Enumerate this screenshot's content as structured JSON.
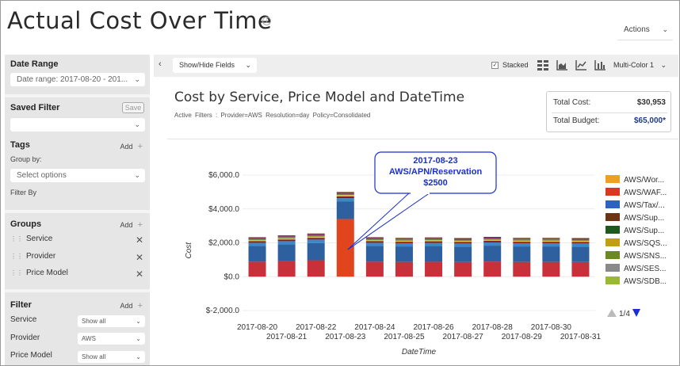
{
  "header": {
    "title": "Actual Cost Over Time",
    "info_icon": "i",
    "actions_label": "Actions"
  },
  "sidebar": {
    "date_range": {
      "title": "Date Range",
      "value": "Date range:  2017-08-20 - 201..."
    },
    "saved_filter": {
      "title": "Saved Filter",
      "save_label": "Save",
      "value": ""
    },
    "tags": {
      "title": "Tags",
      "add_label": "Add",
      "group_by_label": "Group by:",
      "select_placeholder": "Select options",
      "filter_by_label": "Filter By"
    },
    "groups": {
      "title": "Groups",
      "add_label": "Add",
      "items": [
        "Service",
        "Provider",
        "Price Model"
      ]
    },
    "filter": {
      "title": "Filter",
      "add_label": "Add",
      "rows": [
        {
          "label": "Service",
          "value": "Show all"
        },
        {
          "label": "Provider",
          "value": "AWS"
        },
        {
          "label": "Price Model",
          "value": "Show all"
        }
      ]
    }
  },
  "toolbar": {
    "collapse_icon": "‹",
    "show_hide_label": "Show/Hide Fields",
    "stacked_label": "Stacked",
    "stacked_checked": true,
    "color_scheme_label": "Multi-Color 1"
  },
  "report": {
    "title": "Cost by Service, Price Model and DateTime",
    "active_filters": "Active Filters :   Provider=AWS   Resolution=day   Policy=Consolidated",
    "total_cost_label": "Total Cost:",
    "total_cost_value": "$30,953",
    "total_budget_label": "Total Budget:",
    "total_budget_value": "$65,000*"
  },
  "chart_data": {
    "type": "bar",
    "stacked": true,
    "xlabel": "DateTime",
    "ylabel": "Cost",
    "ylim": [
      -2000,
      6000
    ],
    "yticks": [
      -2000,
      0,
      2000,
      4000,
      6000
    ],
    "ytick_labels": [
      "$-2,000.0",
      "$0.0",
      "$2,000.0",
      "$4,000.0",
      "$6,000.0"
    ],
    "categories": [
      "2017-08-20",
      "2017-08-21",
      "2017-08-22",
      "2017-08-23",
      "2017-08-24",
      "2017-08-25",
      "2017-08-26",
      "2017-08-27",
      "2017-08-28",
      "2017-08-29",
      "2017-08-30",
      "2017-08-31"
    ],
    "totals": [
      2330,
      2440,
      2550,
      5000,
      2330,
      2290,
      2320,
      2280,
      2350,
      2290,
      2290,
      2280
    ],
    "segment_colors": [
      "#c8303a",
      "#2e5f9e",
      "#3a88c8",
      "#8b1a1a",
      "#e0c040",
      "#5a8a3a",
      "#8a2a6a",
      "#6b3a1a"
    ],
    "segment_fractions": [
      0.38,
      0.4,
      0.08,
      0.04,
      0.03,
      0.03,
      0.02,
      0.02
    ],
    "highlight": {
      "index": 3,
      "segment_value": 3400,
      "color": "#e0451e"
    },
    "tooltip": {
      "date": "2017-08-23",
      "service": "AWS/APN/Reservation",
      "value": "$2500"
    },
    "legend": {
      "placement": "right",
      "entries": [
        {
          "name": "AWS/Wor...",
          "color": "#f0a020"
        },
        {
          "name": "AWS/WAF...",
          "color": "#d63a1e"
        },
        {
          "name": "AWS/Tax/...",
          "color": "#2e62c4"
        },
        {
          "name": "AWS/Sup...",
          "color": "#6b3412"
        },
        {
          "name": "AWS/Sup...",
          "color": "#1e5a1e"
        },
        {
          "name": "AWS/SQS...",
          "color": "#c0a010"
        },
        {
          "name": "AWS/SNS...",
          "color": "#6a8a20"
        },
        {
          "name": "AWS/SES...",
          "color": "#8a8a8a"
        },
        {
          "name": "AWS/SDB...",
          "color": "#9ab830"
        }
      ],
      "pager": "1/4"
    }
  }
}
